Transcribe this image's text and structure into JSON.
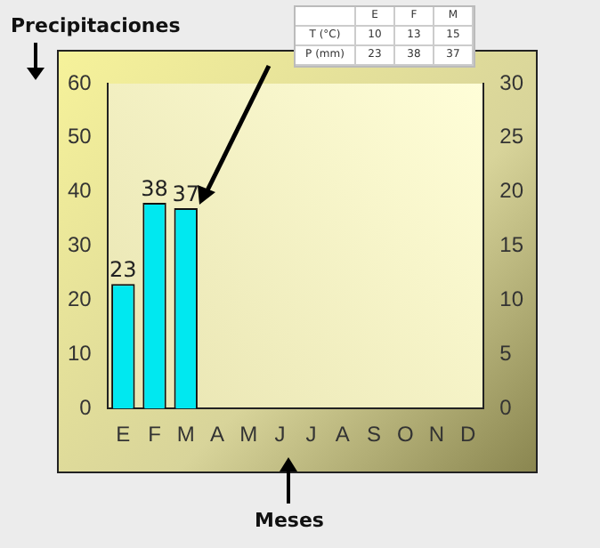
{
  "chart_data": {
    "type": "bar",
    "xlabel": "Meses",
    "ylabel": "Precipitaciones",
    "categories": [
      "E",
      "F",
      "M",
      "A",
      "M",
      "J",
      "J",
      "A",
      "S",
      "O",
      "N",
      "D"
    ],
    "values": [
      23,
      38,
      37,
      null,
      null,
      null,
      null,
      null,
      null,
      null,
      null,
      null
    ],
    "color": "#00e8f0",
    "ylim": [
      0,
      60
    ],
    "yticks": [
      0,
      10,
      20,
      30,
      40,
      50,
      60
    ],
    "y2lim": [
      0,
      30
    ],
    "y2ticks": [
      0,
      5,
      10,
      15,
      20,
      25,
      30
    ],
    "data_labels": true,
    "grid": false,
    "legend": false,
    "annotations": [
      "E",
      "F",
      "M",
      "T (°C)",
      "10",
      "13",
      "15",
      "P (mm)",
      "23",
      "38",
      "37"
    ]
  }
}
